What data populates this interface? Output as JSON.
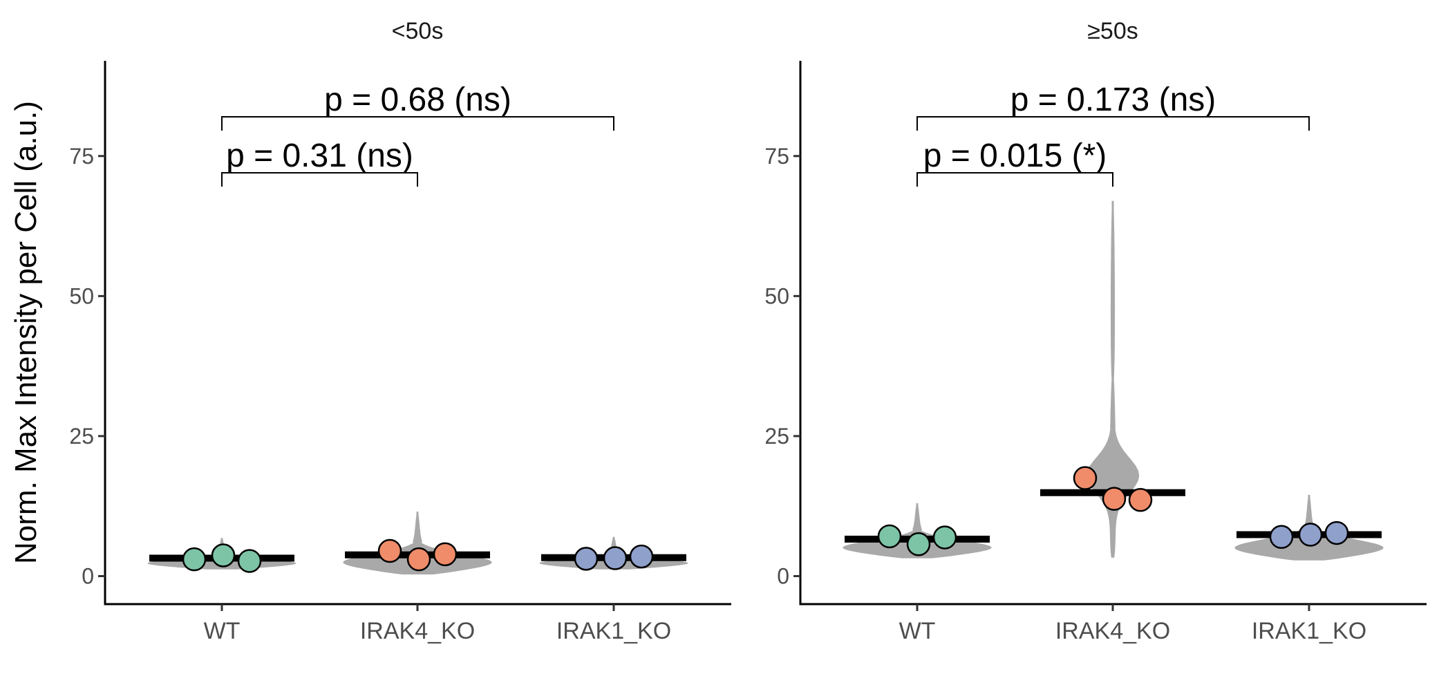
{
  "chart_data": {
    "type": "violin",
    "ylabel": "Norm. Max Intensity per Cell (a.u.)",
    "xlabel": "",
    "ylim": [
      -5,
      92
    ],
    "yticks": [
      0,
      25,
      50,
      75
    ],
    "categories": [
      "WT",
      "IRAK4_KO",
      "IRAK1_KO"
    ],
    "colors": {
      "WT": "#7dc4a6",
      "IRAK4_KO": "#f08c69",
      "IRAK1_KO": "#8fa0cb",
      "violin": "#a9a9a9"
    },
    "grid": false,
    "legend": "none",
    "panels": [
      {
        "title": "<50s",
        "groups": [
          {
            "category": "WT",
            "mean": 3.2,
            "violin_range": [
              1.2,
              6.8
            ],
            "points": [
              3.0,
              3.7,
              2.7
            ]
          },
          {
            "category": "IRAK4_KO",
            "mean": 3.8,
            "violin_range": [
              0.3,
              11.5
            ],
            "points": [
              4.5,
              3.0,
              3.9
            ]
          },
          {
            "category": "IRAK1_KO",
            "mean": 3.3,
            "violin_range": [
              1.2,
              7.0
            ],
            "points": [
              3.1,
              3.2,
              3.5
            ]
          }
        ],
        "comparisons": [
          {
            "from": "WT",
            "to": "IRAK4_KO",
            "label": "p = 0.31 (ns)",
            "y": 72
          },
          {
            "from": "WT",
            "to": "IRAK1_KO",
            "label": "p = 0.68 (ns)",
            "y": 82
          }
        ]
      },
      {
        "title": "≥50s",
        "groups": [
          {
            "category": "WT",
            "mean": 6.6,
            "violin_range": [
              3.2,
              13.0
            ],
            "points": [
              7.1,
              5.7,
              6.9
            ]
          },
          {
            "category": "IRAK4_KO",
            "mean": 14.9,
            "violin_range": [
              3.3,
              67.0
            ],
            "points": [
              17.5,
              13.8,
              13.6
            ]
          },
          {
            "category": "IRAK1_KO",
            "mean": 7.4,
            "violin_range": [
              2.8,
              14.5
            ],
            "points": [
              7.0,
              7.4,
              7.7
            ]
          }
        ],
        "comparisons": [
          {
            "from": "WT",
            "to": "IRAK4_KO",
            "label": "p = 0.015 (*)",
            "y": 72
          },
          {
            "from": "WT",
            "to": "IRAK1_KO",
            "label": "p = 0.173 (ns)",
            "y": 82
          }
        ]
      }
    ]
  }
}
